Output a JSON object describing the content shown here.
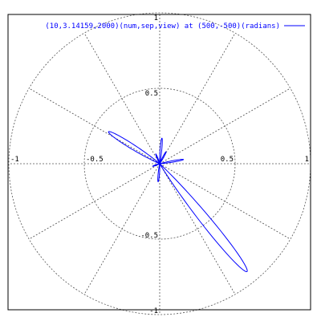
{
  "chart_data": {
    "type": "line",
    "subtype": "polar",
    "angle_unit": "radians",
    "r_range": [
      0,
      1
    ],
    "x_range": [
      -1,
      1
    ],
    "y_range": [
      -1,
      1
    ],
    "grid": true,
    "grid_radii": [
      0.5,
      1
    ],
    "grid_spoke_angles_deg": [
      0,
      30,
      60,
      90,
      120,
      150,
      180,
      210,
      240,
      270,
      300,
      330
    ],
    "x_ticks": [
      "-1",
      "-0.5",
      "0.5",
      "1"
    ],
    "y_ticks": [
      "1",
      "0.5",
      "-0.5",
      "-1"
    ],
    "x_tick_values": [
      -1,
      -0.5,
      0.5,
      1
    ],
    "y_tick_values": [
      1,
      0.5,
      -0.5,
      -1
    ],
    "legend_position": "top-right",
    "series": [
      {
        "name": "(10,3.14159,2000)(num,sep,view) at (500,-500)(radians)",
        "color": "#0000ff",
        "lobes": [
          {
            "angle_deg": -51,
            "peak": 0.92,
            "half_width_deg": 5.0
          },
          {
            "angle_deg": 148,
            "peak": 0.4,
            "half_width_deg": 5.5
          },
          {
            "angle_deg": 85,
            "peak": 0.17,
            "half_width_deg": 4.5
          },
          {
            "angle_deg": 62,
            "peak": 0.09,
            "half_width_deg": 5.0
          },
          {
            "angle_deg": 10,
            "peak": 0.16,
            "half_width_deg": 4.0
          },
          {
            "angle_deg": -95,
            "peak": 0.12,
            "half_width_deg": 5.0
          },
          {
            "angle_deg": 112,
            "peak": 0.07,
            "half_width_deg": 5.0
          },
          {
            "angle_deg": 200,
            "peak": 0.05,
            "half_width_deg": 6.0
          }
        ]
      }
    ]
  }
}
